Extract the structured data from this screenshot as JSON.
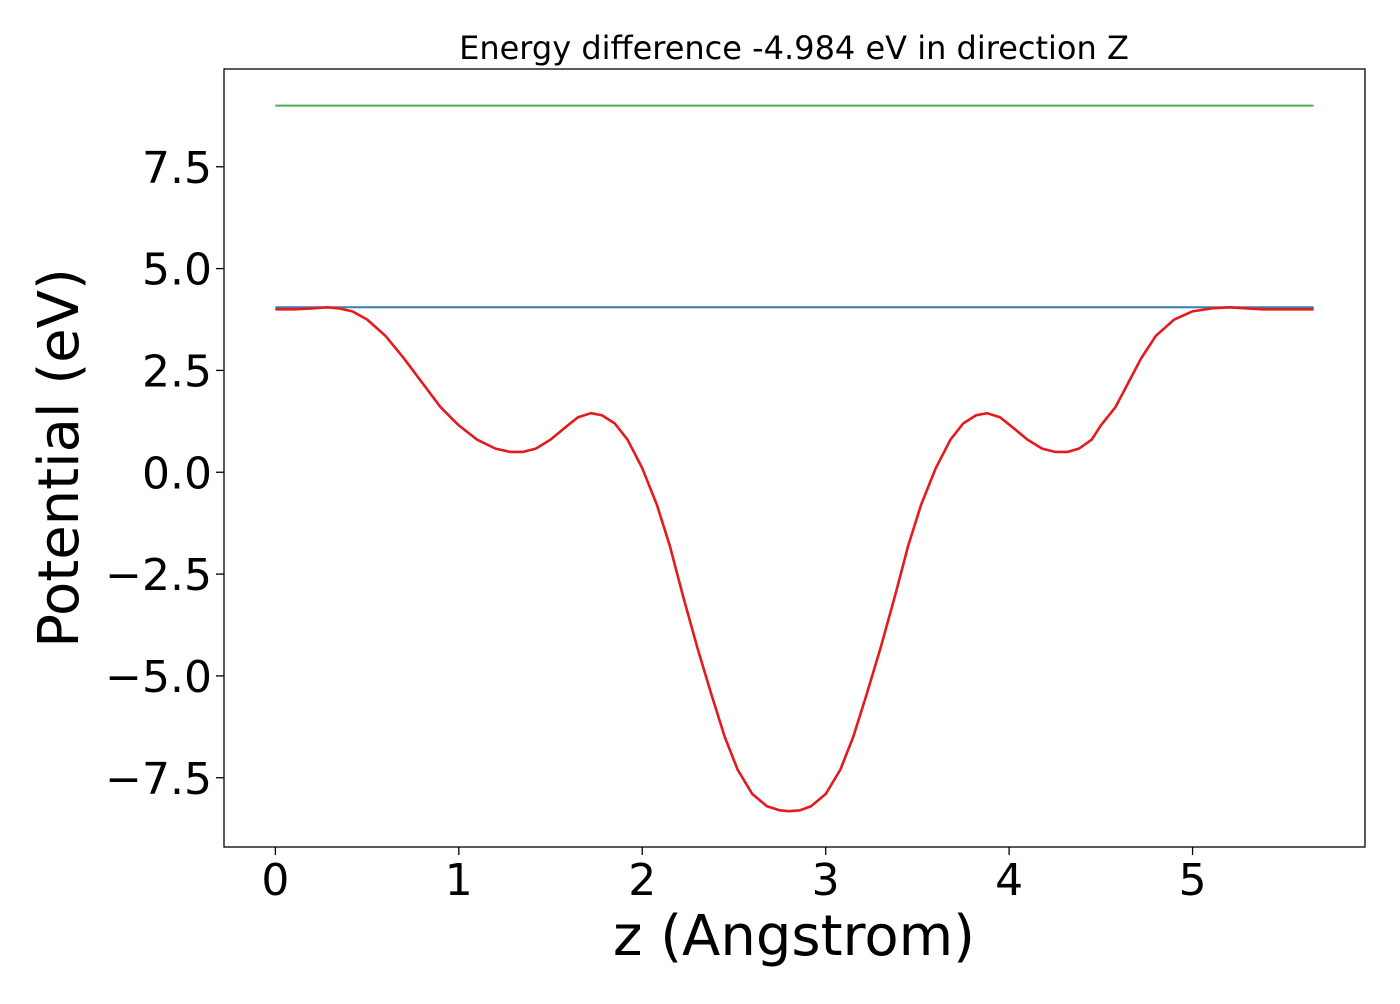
{
  "chart_data": {
    "type": "line",
    "title": "Energy difference -4.984 eV in direction Z",
    "xlabel": "z (Angstrom)",
    "ylabel": "Potential (eV)",
    "xlim": [
      -0.28,
      5.94
    ],
    "ylim": [
      -9.2,
      9.9
    ],
    "xticks": [
      0,
      1,
      2,
      3,
      4,
      5
    ],
    "xtick_labels": [
      "0",
      "1",
      "2",
      "3",
      "4",
      "5"
    ],
    "yticks": [
      -7.5,
      -5.0,
      -2.5,
      0.0,
      2.5,
      5.0,
      7.5
    ],
    "ytick_labels": [
      "−7.5",
      "−5.0",
      "−2.5",
      "0.0",
      "2.5",
      "5.0",
      "7.5"
    ],
    "grid": false,
    "colors": {
      "potential": "#e41a1c",
      "blue_level": "#377eb8",
      "green_level": "#4daf4a"
    },
    "series": [
      {
        "color_key": "green_level",
        "x": [
          0.0,
          5.66
        ],
        "y": [
          9.0,
          9.0
        ]
      },
      {
        "color_key": "blue_level",
        "x": [
          0.0,
          5.66
        ],
        "y": [
          4.05,
          4.05
        ]
      },
      {
        "color_key": "potential",
        "x": [
          0.0,
          0.1,
          0.2,
          0.28,
          0.35,
          0.42,
          0.5,
          0.6,
          0.7,
          0.8,
          0.9,
          1.0,
          1.1,
          1.2,
          1.28,
          1.35,
          1.42,
          1.5,
          1.58,
          1.65,
          1.72,
          1.78,
          1.85,
          1.92,
          2.0,
          2.08,
          2.15,
          2.22,
          2.3,
          2.38,
          2.45,
          2.52,
          2.6,
          2.68,
          2.75,
          2.8,
          2.86,
          2.92,
          3.0,
          3.08,
          3.15,
          3.22,
          3.3,
          3.38,
          3.45,
          3.52,
          3.6,
          3.68,
          3.75,
          3.82,
          3.88,
          3.95,
          4.02,
          4.1,
          4.18,
          4.25,
          4.32,
          4.38,
          4.45,
          4.5,
          4.58,
          4.65,
          4.72,
          4.8,
          4.9,
          5.0,
          5.1,
          5.2,
          5.3,
          5.38,
          5.45,
          5.52,
          5.6,
          5.66
        ],
        "y": [
          4.0,
          4.0,
          4.02,
          4.05,
          4.02,
          3.95,
          3.75,
          3.35,
          2.8,
          2.2,
          1.6,
          1.15,
          0.8,
          0.58,
          0.5,
          0.5,
          0.58,
          0.8,
          1.1,
          1.35,
          1.45,
          1.4,
          1.2,
          0.8,
          0.1,
          -0.8,
          -1.8,
          -3.0,
          -4.3,
          -5.5,
          -6.5,
          -7.3,
          -7.9,
          -8.2,
          -8.3,
          -8.32,
          -8.3,
          -8.2,
          -7.9,
          -7.3,
          -6.5,
          -5.5,
          -4.3,
          -3.0,
          -1.8,
          -0.8,
          0.1,
          0.8,
          1.2,
          1.4,
          1.45,
          1.35,
          1.1,
          0.8,
          0.58,
          0.5,
          0.5,
          0.58,
          0.8,
          1.15,
          1.6,
          2.2,
          2.8,
          3.35,
          3.75,
          3.95,
          4.02,
          4.05,
          4.02,
          4.0,
          4.0,
          4.0,
          4.0,
          4.0
        ]
      }
    ]
  }
}
